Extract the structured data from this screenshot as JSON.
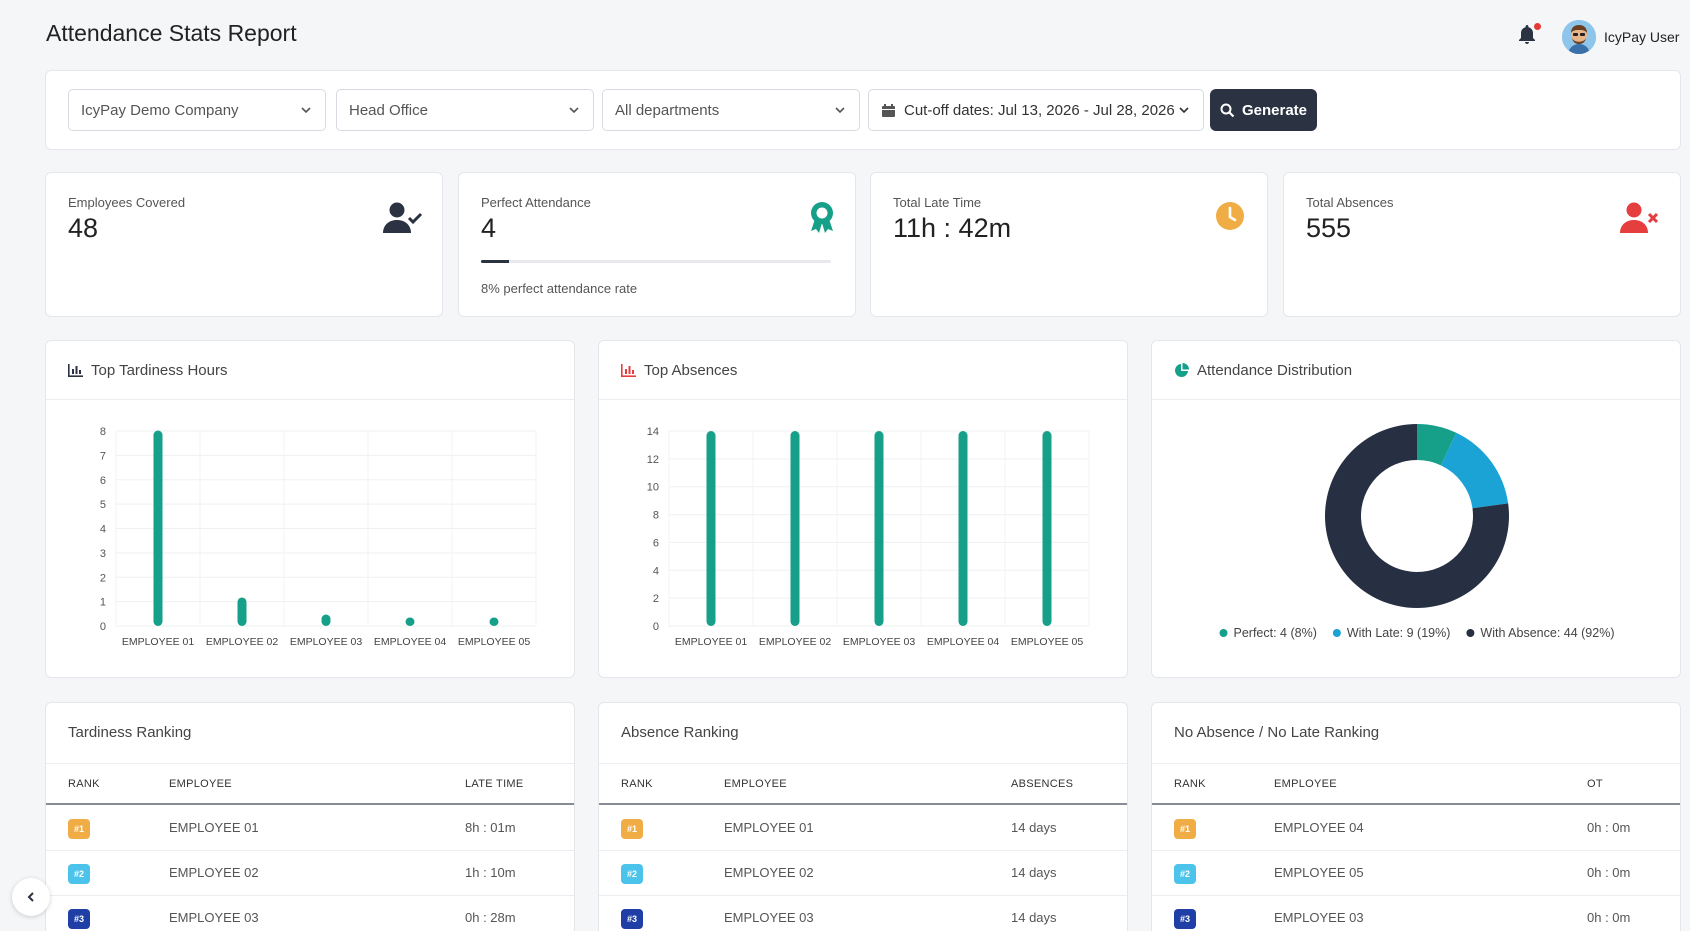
{
  "header": {
    "title": "Attendance Stats Report",
    "user_name": "IcyPay User"
  },
  "filters": {
    "company": "IcyPay Demo Company",
    "branch": "Head Office",
    "department": "All departments",
    "cutoff": "Cut-off dates: Jul 13, 2026 - Jul 28, 2026",
    "generate_label": "Generate"
  },
  "stats": {
    "employees_covered": {
      "label": "Employees Covered",
      "value": "48"
    },
    "perfect_attendance": {
      "label": "Perfect Attendance",
      "value": "4",
      "rate_text": "8% perfect attendance rate",
      "rate": 0.08
    },
    "total_late_time": {
      "label": "Total Late Time",
      "value": "11h : 42m"
    },
    "total_absences": {
      "label": "Total Absences",
      "value": "555"
    }
  },
  "colors": {
    "teal": "#16a08a",
    "sky": "#1ca3d6",
    "navy": "#263042",
    "gold": "#f0ad45",
    "red": "#e53e3e",
    "rank1": "#f0ad45",
    "rank2": "#4cc3eb",
    "rank3": "#1f3fa6"
  },
  "panels": {
    "tardiness_title": "Top Tardiness Hours",
    "absences_title": "Top Absences",
    "distribution_title": "Attendance Distribution"
  },
  "chart_data": [
    {
      "type": "bar",
      "title": "Top Tardiness Hours",
      "categories": [
        "EMPLOYEE 01",
        "EMPLOYEE 02",
        "EMPLOYEE 03",
        "EMPLOYEE 04",
        "EMPLOYEE 05"
      ],
      "values": [
        8.02,
        1.17,
        0.47,
        0.35,
        0.35
      ],
      "ylim": [
        0,
        8
      ],
      "yticks": [
        0,
        1,
        2,
        3,
        4,
        5,
        6,
        7,
        8
      ],
      "grid": true
    },
    {
      "type": "bar",
      "title": "Top Absences",
      "categories": [
        "EMPLOYEE 01",
        "EMPLOYEE 02",
        "EMPLOYEE 03",
        "EMPLOYEE 04",
        "EMPLOYEE 05"
      ],
      "values": [
        14,
        14,
        14,
        14,
        14
      ],
      "ylim": [
        0,
        14
      ],
      "yticks": [
        0,
        2,
        4,
        6,
        8,
        10,
        12,
        14
      ],
      "grid": true
    },
    {
      "type": "pie",
      "title": "Attendance Distribution",
      "slices": [
        {
          "label": "Perfect: 4 (8%)",
          "value": 4,
          "color": "#16a08a"
        },
        {
          "label": "With Late: 9 (19%)",
          "value": 9,
          "color": "#1ca3d6"
        },
        {
          "label": "With Absence: 44 (92%)",
          "value": 44,
          "color": "#263042"
        }
      ],
      "legend": "bottom"
    }
  ],
  "rankings": {
    "tardiness": {
      "title": "Tardiness Ranking",
      "headers": [
        "RANK",
        "EMPLOYEE",
        "LATE TIME"
      ],
      "rows": [
        {
          "rank": "#1",
          "employee": "EMPLOYEE 01",
          "value": "8h : 01m"
        },
        {
          "rank": "#2",
          "employee": "EMPLOYEE 02",
          "value": "1h : 10m"
        },
        {
          "rank": "#3",
          "employee": "EMPLOYEE 03",
          "value": "0h : 28m"
        }
      ]
    },
    "absence": {
      "title": "Absence Ranking",
      "headers": [
        "RANK",
        "EMPLOYEE",
        "ABSENCES"
      ],
      "rows": [
        {
          "rank": "#1",
          "employee": "EMPLOYEE 01",
          "value": "14 days"
        },
        {
          "rank": "#2",
          "employee": "EMPLOYEE 02",
          "value": "14 days"
        },
        {
          "rank": "#3",
          "employee": "EMPLOYEE 03",
          "value": "14 days"
        }
      ]
    },
    "no_absence": {
      "title": "No Absence / No Late Ranking",
      "headers": [
        "RANK",
        "EMPLOYEE",
        "OT"
      ],
      "rows": [
        {
          "rank": "#1",
          "employee": "EMPLOYEE 04",
          "value": "0h : 0m"
        },
        {
          "rank": "#2",
          "employee": "EMPLOYEE 05",
          "value": "0h : 0m"
        },
        {
          "rank": "#3",
          "employee": "EMPLOYEE 03",
          "value": "0h : 0m"
        }
      ]
    }
  }
}
